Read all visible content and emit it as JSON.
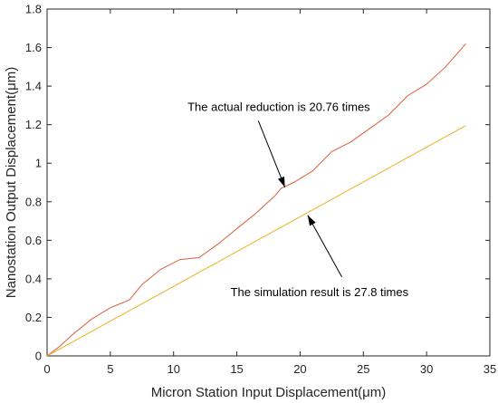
{
  "chart_data": {
    "type": "line",
    "title": "",
    "xlabel": "Micron Station Input Displacement(μm)",
    "ylabel": "Nanostation Output Displacement(μm)",
    "xlim": [
      0,
      35
    ],
    "ylim": [
      0,
      1.8
    ],
    "xticks": [
      "0",
      "5",
      "10",
      "15",
      "20",
      "25",
      "30",
      "35"
    ],
    "yticks": [
      "0",
      "0.2",
      "0.4",
      "0.6",
      "0.8",
      "1",
      "1.2",
      "1.4",
      "1.6",
      "1.8"
    ],
    "grid": false,
    "series": [
      {
        "color": "#d9603b",
        "x": [
          0,
          1,
          2,
          3.5,
          5,
          6.5,
          7.5,
          9,
          10.5,
          12,
          13.5,
          15,
          16.5,
          18,
          18.5,
          19.5,
          21,
          22.5,
          24,
          25.5,
          27,
          28.5,
          30,
          31.5,
          33.1
        ],
        "y": [
          0,
          0.05,
          0.11,
          0.19,
          0.25,
          0.29,
          0.37,
          0.45,
          0.5,
          0.51,
          0.58,
          0.66,
          0.74,
          0.83,
          0.87,
          0.9,
          0.96,
          1.06,
          1.11,
          1.18,
          1.25,
          1.35,
          1.41,
          1.5,
          1.62
        ]
      },
      {
        "color": "#edb120",
        "x": [
          0,
          33.1
        ],
        "y": [
          0,
          1.195
        ]
      }
    ],
    "annotations": [
      {
        "text": "The actual reduction is 20.76 times",
        "text_x": 11.1,
        "text_y": 1.29,
        "tail": [
          16.7,
          1.22
        ],
        "head": [
          18.8,
          0.875
        ]
      },
      {
        "text": "The simulation result is 27.8 times",
        "text_x": 14.5,
        "text_y": 0.33,
        "tail": [
          23.3,
          0.41
        ],
        "head": [
          20.6,
          0.73
        ]
      }
    ]
  }
}
